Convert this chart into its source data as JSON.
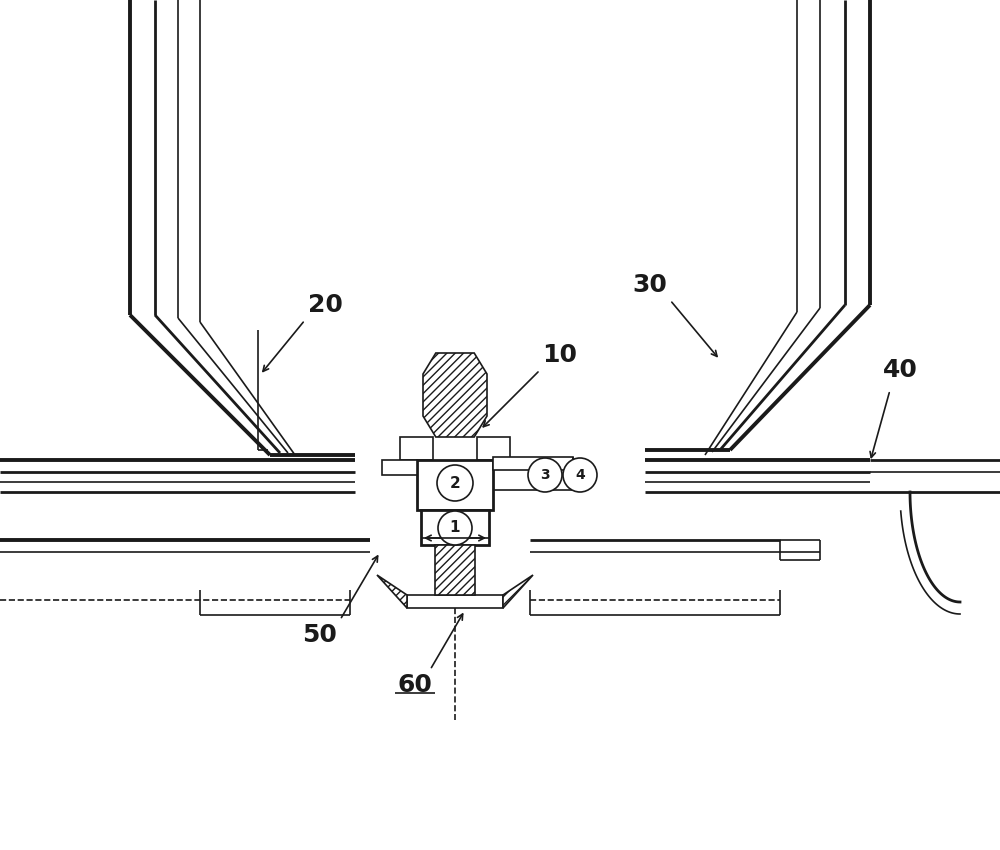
{
  "background_color": "#ffffff",
  "line_color": "#1a1a1a",
  "lw_thin": 1.2,
  "lw_med": 2.0,
  "lw_thick": 2.8,
  "fig_width": 10.0,
  "fig_height": 8.5
}
